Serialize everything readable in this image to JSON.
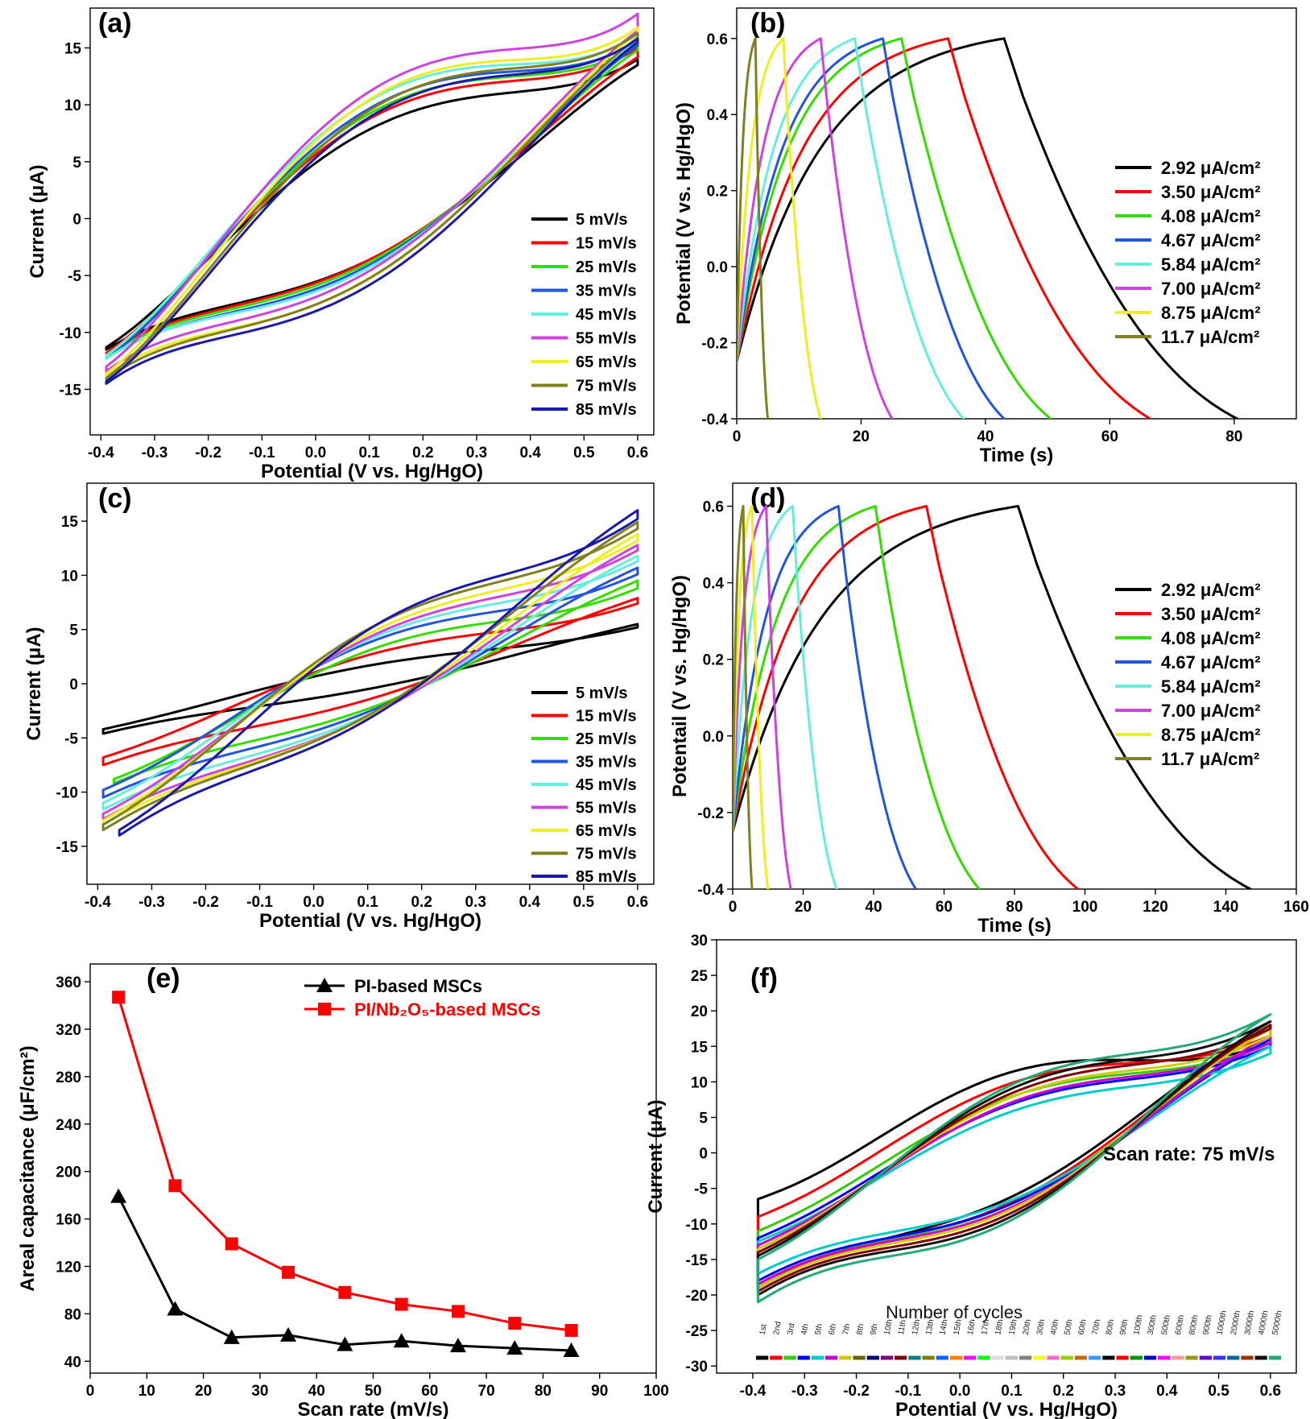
{
  "chart_data": [
    {
      "panel": "(a)",
      "type": "line",
      "subtype": "cyclic-voltammetry",
      "xlabel": "Potential (V vs. Hg/HgO)",
      "ylabel": "Current (μA)",
      "xlim": [
        -0.42,
        0.63
      ],
      "ylim": [
        -19,
        18.5
      ],
      "xticks": [
        "-0.4",
        "-0.3",
        "-0.2",
        "-0.1",
        "0.0",
        "0.1",
        "0.2",
        "0.3",
        "0.4",
        "0.5",
        "0.6"
      ],
      "yticks": [
        "-15",
        "-10",
        "-5",
        "0",
        "5",
        "10",
        "15"
      ],
      "legend_position": "lower-right",
      "series": [
        {
          "name": "5 mV/s",
          "color": "#000000",
          "loop": {
            "x1": -0.39,
            "x2": 0.6,
            "y1a": -11.5,
            "y2a": 13.5,
            "y1b": -11.3,
            "y2b": 14.0,
            "ua": 6.6,
            "la": -4.5,
            "ta": 1.0,
            "k": 2.0
          }
        },
        {
          "name": "15 mV/s",
          "color": "#ff0000",
          "loop": {
            "x1": -0.39,
            "x2": 0.6,
            "y1a": -11.8,
            "y2a": 14.2,
            "y1b": -11.8,
            "y2b": 15.0,
            "ua": 7.3,
            "la": -4.7,
            "ta": 1.0,
            "k": 2.0
          }
        },
        {
          "name": "25 mV/s",
          "color": "#33dd00",
          "loop": {
            "x1": -0.39,
            "x2": 0.6,
            "y1a": -12.0,
            "y2a": 14.8,
            "y1b": -12.0,
            "y2b": 15.3,
            "ua": 7.7,
            "la": -5.1,
            "ta": 1.0,
            "k": 2.0
          }
        },
        {
          "name": "35 mV/s",
          "color": "#2255dd",
          "loop": {
            "x1": -0.39,
            "x2": 0.6,
            "y1a": -12.3,
            "y2a": 15.2,
            "y1b": -12.3,
            "y2b": 15.7,
            "ua": 8.1,
            "la": -5.4,
            "ta": 1.0,
            "k": 2.0
          }
        },
        {
          "name": "45 mV/s",
          "color": "#66eedd",
          "loop": {
            "x1": -0.39,
            "x2": 0.6,
            "y1a": -12.3,
            "y2a": 15.6,
            "y1b": -12.0,
            "y2b": 16.2,
            "ua": 8.4,
            "la": -5.8,
            "ta": 1.0,
            "k": 2.0
          }
        },
        {
          "name": "55 mV/s",
          "color": "#cc44dd",
          "loop": {
            "x1": -0.39,
            "x2": 0.6,
            "y1a": -13.4,
            "y2a": 16.5,
            "y1b": -13.0,
            "y2b": 18.0,
            "ua": 8.8,
            "la": -6.0,
            "ta": 1.0,
            "k": 2.0
          }
        },
        {
          "name": "65 mV/s",
          "color": "#eeee22",
          "loop": {
            "x1": -0.39,
            "x2": 0.6,
            "y1a": -13.8,
            "y2a": 16.3,
            "y1b": -13.6,
            "y2b": 16.8,
            "ua": 9.0,
            "la": -6.4,
            "ta": 1.0,
            "k": 2.0
          }
        },
        {
          "name": "75 mV/s",
          "color": "#808020",
          "loop": {
            "x1": -0.39,
            "x2": 0.6,
            "y1a": -14.1,
            "y2a": 15.9,
            "y1b": -14.0,
            "y2b": 16.3,
            "ua": 8.5,
            "la": -6.0,
            "ta": 1.0,
            "k": 2.0
          }
        },
        {
          "name": "85 mV/s",
          "color": "#1a1aaa",
          "loop": {
            "x1": -0.39,
            "x2": 0.6,
            "y1a": -14.5,
            "y2a": 15.5,
            "y1b": -14.3,
            "y2b": 15.8,
            "ua": 8.3,
            "la": -6.2,
            "ta": 1.0,
            "k": 2.0
          }
        }
      ]
    },
    {
      "panel": "(b)",
      "type": "line",
      "subtype": "galvanostatic-charge-discharge",
      "xlabel": "Time (s)",
      "ylabel": "Potential (V vs. Hg/HgO)",
      "xlim": [
        0,
        90
      ],
      "ylim": [
        -0.4,
        0.68
      ],
      "xticks": [
        "0",
        "20",
        "40",
        "60",
        "80"
      ],
      "yticks": [
        "-0.4",
        "-0.2",
        "0.0",
        "0.2",
        "0.4",
        "0.6"
      ],
      "legend_position": "right",
      "series": [
        {
          "name": "2.92 μA/cm²",
          "color": "#000000",
          "gcd": {
            "tc": 43.0,
            "td": 80.5
          }
        },
        {
          "name": "3.50 μA/cm²",
          "color": "#ff0000",
          "gcd": {
            "tc": 34.0,
            "td": 66.5
          }
        },
        {
          "name": "4.08 μA/cm²",
          "color": "#33dd00",
          "gcd": {
            "tc": 26.5,
            "td": 50.5
          }
        },
        {
          "name": "4.67 μA/cm²",
          "color": "#2255dd",
          "gcd": {
            "tc": 23.5,
            "td": 43.0
          }
        },
        {
          "name": "5.84 μA/cm²",
          "color": "#66eedd",
          "gcd": {
            "tc": 19.0,
            "td": 36.5
          }
        },
        {
          "name": "7.00 μA/cm²",
          "color": "#cc44dd",
          "gcd": {
            "tc": 13.5,
            "td": 25.0
          }
        },
        {
          "name": "8.75 μA/cm²",
          "color": "#eeee22",
          "gcd": {
            "tc": 7.5,
            "td": 13.5
          }
        },
        {
          "name": "11.7 μA/cm²",
          "color": "#808020",
          "gcd": {
            "tc": 3.0,
            "td": 5.0
          }
        }
      ]
    },
    {
      "panel": "(c)",
      "type": "line",
      "subtype": "cyclic-voltammetry",
      "xlabel": "Potential (V vs. Hg/HgO)",
      "ylabel": "Current (μA)",
      "xlim": [
        -0.42,
        0.63
      ],
      "ylim": [
        -18.5,
        18.5
      ],
      "xticks": [
        "-0.4",
        "-0.3",
        "-0.2",
        "-0.1",
        "0.0",
        "0.1",
        "0.2",
        "0.3",
        "0.4",
        "0.5",
        "0.6"
      ],
      "yticks": [
        "-15",
        "-10",
        "-5",
        "0",
        "5",
        "10",
        "15"
      ],
      "legend_position": "lower-right",
      "series": [
        {
          "name": "5 mV/s",
          "color": "#000000",
          "loop": {
            "x1": -0.39,
            "x2": 0.6,
            "y1a": -4.6,
            "y2a": 5.5,
            "y1b": -4.2,
            "y2b": 5.2,
            "ua": 1.2,
            "la": -0.9,
            "ta": 0.4,
            "k": 2.5
          }
        },
        {
          "name": "15 mV/s",
          "color": "#ff0000",
          "loop": {
            "x1": -0.39,
            "x2": 0.6,
            "y1a": -7.5,
            "y2a": 7.9,
            "y1b": -6.8,
            "y2b": 7.4,
            "ua": 2.4,
            "la": -1.6,
            "ta": 0.4,
            "k": 2.5
          }
        },
        {
          "name": "25 mV/s",
          "color": "#33dd00",
          "loop": {
            "x1": -0.37,
            "x2": 0.6,
            "y1a": -9.2,
            "y2a": 9.5,
            "y1b": -8.8,
            "y2b": 8.8,
            "ua": 3.3,
            "la": -2.2,
            "ta": 0.4,
            "k": 2.5
          }
        },
        {
          "name": "35 mV/s",
          "color": "#2255dd",
          "loop": {
            "x1": -0.39,
            "x2": 0.6,
            "y1a": -10.5,
            "y2a": 10.7,
            "y1b": -9.8,
            "y2b": 10.1,
            "ua": 3.7,
            "la": -2.6,
            "ta": 0.4,
            "k": 2.5
          }
        },
        {
          "name": "45 mV/s",
          "color": "#66eedd",
          "loop": {
            "x1": -0.39,
            "x2": 0.6,
            "y1a": -11.6,
            "y2a": 11.8,
            "y1b": -11.0,
            "y2b": 11.3,
            "ua": 4.0,
            "la": -2.9,
            "ta": 0.4,
            "k": 2.5
          }
        },
        {
          "name": "55 mV/s",
          "color": "#cc44dd",
          "loop": {
            "x1": -0.39,
            "x2": 0.6,
            "y1a": -12.5,
            "y2a": 12.8,
            "y1b": -12.0,
            "y2b": 12.3,
            "ua": 4.2,
            "la": -3.1,
            "ta": 0.4,
            "k": 2.5
          }
        },
        {
          "name": "65 mV/s",
          "color": "#eeee22",
          "loop": {
            "x1": -0.39,
            "x2": 0.6,
            "y1a": -13.0,
            "y2a": 13.8,
            "y1b": -12.6,
            "y2b": 13.2,
            "ua": 4.4,
            "la": -3.3,
            "ta": 0.4,
            "k": 2.5
          }
        },
        {
          "name": "75 mV/s",
          "color": "#808020",
          "loop": {
            "x1": -0.39,
            "x2": 0.6,
            "y1a": -13.5,
            "y2a": 14.9,
            "y1b": -13.0,
            "y2b": 14.3,
            "ua": 4.5,
            "la": -3.5,
            "ta": 0.4,
            "k": 2.5
          }
        },
        {
          "name": "85 mV/s",
          "color": "#1a1aaa",
          "loop": {
            "x1": -0.36,
            "x2": 0.6,
            "y1a": -14.0,
            "y2a": 16.0,
            "y1b": -13.5,
            "y2b": 15.2,
            "ua": 4.7,
            "la": -3.7,
            "ta": 0.4,
            "k": 2.5
          }
        }
      ]
    },
    {
      "panel": "(d)",
      "type": "line",
      "subtype": "galvanostatic-charge-discharge",
      "xlabel": "Time (s)",
      "ylabel": "Potentail (V vs. Hg/HgO)",
      "xlim": [
        0,
        160
      ],
      "ylim": [
        -0.4,
        0.66
      ],
      "xticks": [
        "0",
        "20",
        "40",
        "60",
        "80",
        "100",
        "120",
        "140",
        "160"
      ],
      "yticks": [
        "-0.4",
        "-0.2",
        "0.0",
        "0.2",
        "0.4",
        "0.6"
      ],
      "legend_position": "right",
      "series": [
        {
          "name": "2.92 μA/cm²",
          "color": "#000000",
          "gcd": {
            "tc": 81.0,
            "td": 147.0
          }
        },
        {
          "name": "3.50 μA/cm²",
          "color": "#ff0000",
          "gcd": {
            "tc": 55.0,
            "td": 98.0
          }
        },
        {
          "name": "4.08 μA/cm²",
          "color": "#33dd00",
          "gcd": {
            "tc": 40.5,
            "td": 70.0
          }
        },
        {
          "name": "4.67 μA/cm²",
          "color": "#2255dd",
          "gcd": {
            "tc": 30.0,
            "td": 52.0
          }
        },
        {
          "name": "5.84 μA/cm²",
          "color": "#66eedd",
          "gcd": {
            "tc": 17.0,
            "td": 29.5
          }
        },
        {
          "name": "7.00 μA/cm²",
          "color": "#cc44dd",
          "gcd": {
            "tc": 9.5,
            "td": 16.5
          }
        },
        {
          "name": "8.75 μA/cm²",
          "color": "#eeee22",
          "gcd": {
            "tc": 5.5,
            "td": 10.0
          }
        },
        {
          "name": "11.7 μA/cm²",
          "color": "#808020",
          "gcd": {
            "tc": 3.0,
            "td": 5.5
          }
        }
      ]
    },
    {
      "panel": "(e)",
      "type": "line",
      "xlabel": "Scan rate (mV/s)",
      "ylabel": "Areal capacitance (μF/cm²)",
      "xlim": [
        0,
        100
      ],
      "ylim": [
        30,
        375
      ],
      "xticks": [
        "0",
        "10",
        "20",
        "30",
        "40",
        "50",
        "60",
        "70",
        "80",
        "90",
        "100"
      ],
      "yticks": [
        "40",
        "80",
        "120",
        "160",
        "200",
        "240",
        "280",
        "320",
        "360"
      ],
      "legend_position": "top-right",
      "series": [
        {
          "name": "PI-based MSCs",
          "color": "#000000",
          "marker": "triangle",
          "x": [
            5,
            15,
            25,
            35,
            45,
            55,
            65,
            75,
            85
          ],
          "values": [
            179,
            84,
            60,
            62,
            54,
            57,
            53,
            51,
            49
          ]
        },
        {
          "name": "PI/Nb₂O₅-based MSCs",
          "color": "#ff0000",
          "marker": "square",
          "x": [
            5,
            15,
            25,
            35,
            45,
            55,
            65,
            75,
            85
          ],
          "values": [
            347,
            188,
            139,
            115,
            98,
            88,
            82,
            72,
            66
          ]
        }
      ]
    },
    {
      "panel": "(f)",
      "type": "line",
      "subtype": "cyclic-voltammetry",
      "xlabel": "Potential (V vs. Hg/HgO)",
      "ylabel": "Current (μA)",
      "xlim": [
        -0.47,
        0.65
      ],
      "ylim": [
        -31,
        30
      ],
      "xticks": [
        "-0.4",
        "-0.3",
        "-0.2",
        "-0.1",
        "0.0",
        "0.1",
        "0.2",
        "0.3",
        "0.4",
        "0.5",
        "0.6"
      ],
      "yticks": [
        "-30",
        "-25",
        "-20",
        "-15",
        "-10",
        "-5",
        "0",
        "5",
        "10",
        "15",
        "20",
        "25",
        "30"
      ],
      "annotation": "Scan rate: 75 mV/s",
      "legend_title": "Number of cycles",
      "legend_position": "bottom",
      "cycles_legend": {
        "labels": [
          "1st",
          "2nd",
          "3rd",
          "4th",
          "5th",
          "6th",
          "7th",
          "8th",
          "9th",
          "10th",
          "11th",
          "12th",
          "13th",
          "14th",
          "15th",
          "16th",
          "17th",
          "18th",
          "19th",
          "20th",
          "30th",
          "40th",
          "50th",
          "60th",
          "70th",
          "80th",
          "90th",
          "100th",
          "300th",
          "500th",
          "600th",
          "800th",
          "900th",
          "1000th",
          "2000th",
          "3000th",
          "4000th",
          "5000th"
        ],
        "colors": [
          "#000000",
          "#ff0000",
          "#33cc00",
          "#0000ff",
          "#00cccc",
          "#cc00cc",
          "#cccc00",
          "#666600",
          "#000080",
          "#800080",
          "#800000",
          "#008080",
          "#808000",
          "#0066ff",
          "#ff8000",
          "#ff00ff",
          "#00ff00",
          "#ffffff",
          "#c0c0c0",
          "#808080",
          "#ffff00",
          "#ff66cc",
          "#99cc00",
          "#cc6600",
          "#3399ff",
          "#000000",
          "#ff0000",
          "#009900",
          "#0000cc",
          "#ff00ff",
          "#ff9999",
          "#999900",
          "#6600cc",
          "#3333ff",
          "#006699",
          "#993300",
          "#111111",
          "#22aa77"
        ]
      },
      "series": [
        {
          "name": "1st",
          "color": "#000000",
          "loop": {
            "x1": -0.39,
            "x2": 0.6,
            "y1a": -19.0,
            "y2a": 18.0,
            "y1b": -6.5,
            "y2b": 15.5,
            "ua": 7.0,
            "la": -5.5,
            "ta": 1.0,
            "k": 2.5
          }
        },
        {
          "name": "2nd",
          "color": "#ff0000",
          "loop": {
            "x1": -0.39,
            "x2": 0.6,
            "y1a": -19.0,
            "y2a": 17.5,
            "y1b": -9.0,
            "y2b": 16.5,
            "ua": 6.2,
            "la": -6.0,
            "ta": 1.0,
            "k": 2.5
          }
        },
        {
          "name": "3rd",
          "color": "#33cc00",
          "loop": {
            "x1": -0.39,
            "x2": 0.6,
            "y1a": -18.5,
            "y2a": 16.5,
            "y1b": -11.0,
            "y2b": 15.5,
            "ua": 5.8,
            "la": -6.0,
            "ta": 1.0,
            "k": 2.5
          }
        },
        {
          "name": "4th",
          "color": "#0000ff",
          "loop": {
            "x1": -0.39,
            "x2": 0.6,
            "y1a": -18.0,
            "y2a": 16.0,
            "y1b": -12.0,
            "y2b": 15.0,
            "ua": 5.5,
            "la": -6.0,
            "ta": 1.0,
            "k": 2.5
          }
        },
        {
          "name": "10th",
          "color": "#00cccc",
          "loop": {
            "x1": -0.39,
            "x2": 0.6,
            "y1a": -17.0,
            "y2a": 15.0,
            "y1b": -12.5,
            "y2b": 14.0,
            "ua": 5.2,
            "la": -5.5,
            "ta": 1.0,
            "k": 2.5
          }
        },
        {
          "name": "100th",
          "color": "#cc00cc",
          "loop": {
            "x1": -0.39,
            "x2": 0.6,
            "y1a": -18.5,
            "y2a": 16.5,
            "y1b": -13.0,
            "y2b": 15.5,
            "ua": 6.0,
            "la": -6.5,
            "ta": 1.0,
            "k": 2.5
          }
        },
        {
          "name": "500th",
          "color": "#cccc00",
          "loop": {
            "x1": -0.39,
            "x2": 0.6,
            "y1a": -19.0,
            "y2a": 17.5,
            "y1b": -13.5,
            "y2b": 16.5,
            "ua": 6.5,
            "la": -7.0,
            "ta": 1.0,
            "k": 2.5
          }
        },
        {
          "name": "1000th",
          "color": "#800000",
          "loop": {
            "x1": -0.39,
            "x2": 0.6,
            "y1a": -19.5,
            "y2a": 18.0,
            "y1b": -14.0,
            "y2b": 17.5,
            "ua": 6.8,
            "la": -7.5,
            "ta": 1.0,
            "k": 2.5
          }
        },
        {
          "name": "3000th",
          "color": "#111111",
          "loop": {
            "x1": -0.39,
            "x2": 0.6,
            "y1a": -20.0,
            "y2a": 18.5,
            "y1b": -14.5,
            "y2b": 18.5,
            "ua": 7.2,
            "la": -8.0,
            "ta": 1.0,
            "k": 2.5
          }
        },
        {
          "name": "5000th",
          "color": "#22aa77",
          "loop": {
            "x1": -0.39,
            "x2": 0.6,
            "y1a": -21.0,
            "y2a": 19.5,
            "y1b": -15.0,
            "y2b": 19.5,
            "ua": 7.5,
            "la": -8.5,
            "ta": 1.0,
            "k": 2.5
          }
        }
      ]
    }
  ]
}
